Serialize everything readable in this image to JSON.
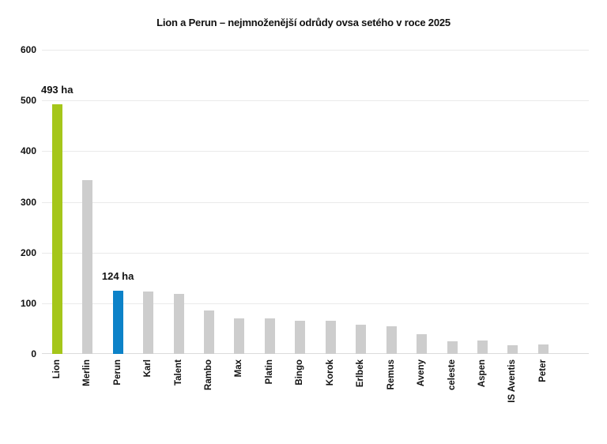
{
  "chart_data": {
    "type": "bar",
    "title": "Lion a Perun – nejmnoženější odrůdy ovsa setého v roce 2025",
    "categories": [
      "Lion",
      "Merlin",
      "Perun",
      "Karl",
      "Talent",
      "Rambo",
      "Max",
      "Platin",
      "Bingo",
      "Korok",
      "Erlbek",
      "Remus",
      "Aveny",
      "celeste",
      "Aspen",
      "IS Aventis",
      "Peter"
    ],
    "values": [
      493,
      343,
      124,
      123,
      119,
      85,
      70,
      70,
      66,
      66,
      58,
      54,
      39,
      25,
      26,
      17,
      18
    ],
    "unit": "ha",
    "xlabel": "",
    "ylabel": "",
    "ylim": [
      0,
      600
    ],
    "yticks": [
      0,
      100,
      200,
      300,
      400,
      500,
      600
    ],
    "grid": "horizontal",
    "legend": "none",
    "colors": {
      "default_bar": "#cdcdcd",
      "highlight_bars": {
        "Lion": "#a5c61a",
        "Perun": "#0c82c8"
      },
      "gridline": "#eaeaea",
      "baseline": "#dcdcdc",
      "text": "#111111",
      "background": "#ffffff"
    },
    "annotations": [
      {
        "category": "Lion",
        "text": "493 ha"
      },
      {
        "category": "Perun",
        "text": "124 ha"
      }
    ]
  }
}
